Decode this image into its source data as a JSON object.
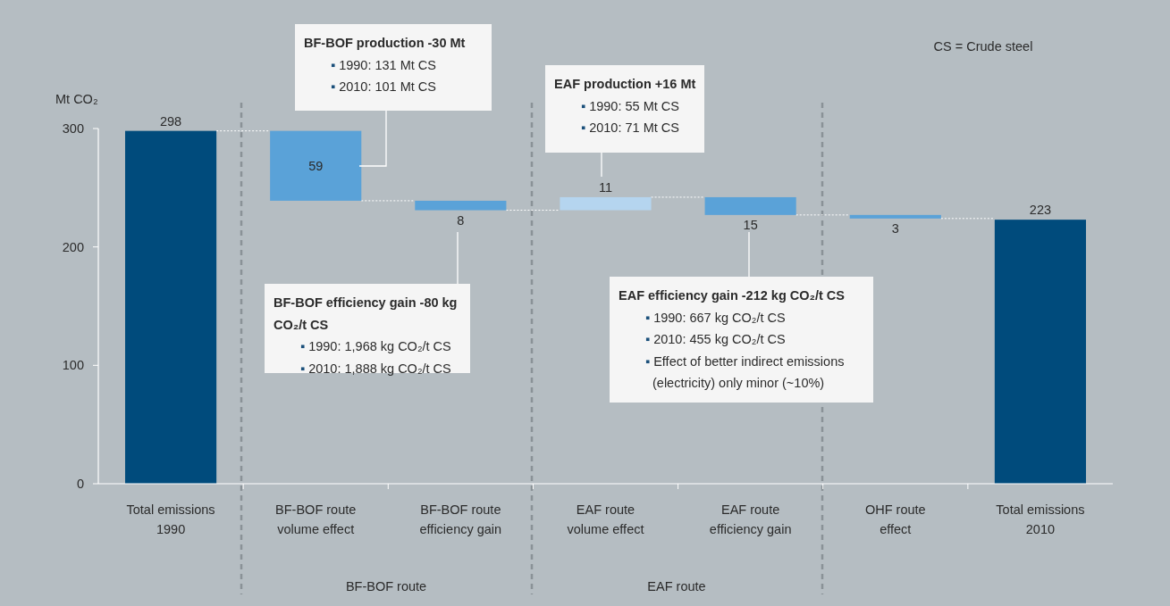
{
  "chart_data": {
    "type": "bar",
    "categories": [
      "Total emissions 1990",
      "BF-BOF route volume effect",
      "BF-BOF route efficiency gain",
      "EAF route volume effect",
      "EAF route efficiency gain",
      "OHF route effect",
      "Total emissions 2010"
    ],
    "values": [
      298,
      59,
      8,
      11,
      15,
      3,
      223
    ],
    "base": [
      0,
      239,
      231,
      231,
      227,
      224,
      0
    ],
    "colors": [
      "#004b7c",
      "#5aa2d8",
      "#5aa2d8",
      "#b5d5ef",
      "#5aa2d8",
      "#5aa2d8",
      "#004b7c"
    ],
    "value_labels": [
      "298",
      "59",
      "8",
      "11",
      "15",
      "3",
      "223"
    ],
    "ylabel": "Mt CO₂",
    "ylim": [
      0,
      300
    ],
    "yticks": [
      0,
      100,
      200,
      300
    ],
    "grid": false,
    "annotations": [
      "BF-BOF production -30 Mt\n▪ 1990: 131 Mt CS\n▪ 2010: 101 Mt CS",
      "EAF production +16 Mt\n▪ 1990: 55 Mt CS\n▪ 2010: 71 Mt CS",
      "BF-BOF efficiency gain -80 kg\nCO₂/t CS\n▪ 1990: 1,968 kg CO₂/t CS\n▪ 2010: 1,888 kg CO₂/t CS",
      "EAF efficiency gain -212 kg CO₂/t CS\n▪ 1990: 667 kg CO₂/t CS\n▪ 2010: 455 kg CO₂/t CS\n▪ Effect of better indirect emissions\n(electricity) only minor (~10%)",
      "CS = Crude steel",
      "BF-BOF route",
      "EAF route"
    ]
  }
}
